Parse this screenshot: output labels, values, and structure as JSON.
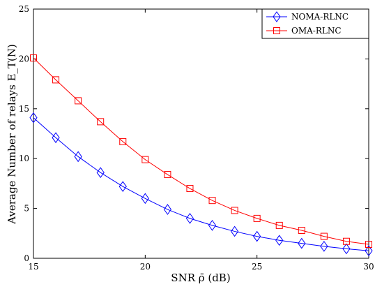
{
  "chart_data": {
    "type": "line",
    "title": "",
    "xlabel": "SNR ρ̄ (dB)",
    "ylabel": "Average Number of relays E_T(N)",
    "xlim": [
      15,
      30
    ],
    "ylim": [
      0,
      25
    ],
    "xticks": [
      15,
      20,
      25,
      30
    ],
    "yticks": [
      0,
      5,
      10,
      15,
      20,
      25
    ],
    "grid": false,
    "legend_position": "top-right",
    "x": [
      15,
      16,
      17,
      18,
      19,
      20,
      21,
      22,
      23,
      24,
      25,
      26,
      27,
      28,
      29,
      30
    ],
    "series": [
      {
        "name": "NOMA-RLNC",
        "color": "#0000ff",
        "marker": "diamond",
        "values": [
          14.1,
          12.1,
          10.2,
          8.6,
          7.2,
          6.0,
          4.9,
          4.0,
          3.3,
          2.7,
          2.2,
          1.8,
          1.5,
          1.2,
          0.95,
          0.75
        ]
      },
      {
        "name": "OMA-RLNC",
        "color": "#ff0000",
        "marker": "square",
        "values": [
          20.1,
          17.9,
          15.8,
          13.7,
          11.7,
          9.9,
          8.4,
          7.0,
          5.8,
          4.8,
          4.0,
          3.3,
          2.8,
          2.2,
          1.7,
          1.4
        ]
      }
    ]
  }
}
